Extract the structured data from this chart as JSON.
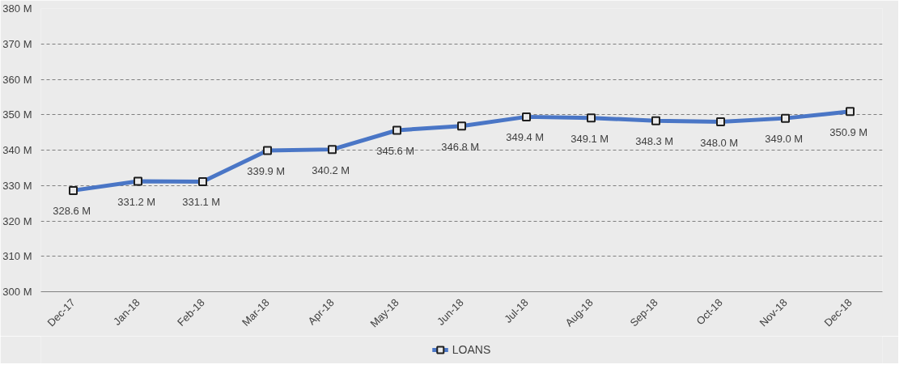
{
  "chart_data": {
    "type": "line",
    "categories": [
      "Dec-17",
      "Jan-18",
      "Feb-18",
      "Mar-18",
      "Apr-18",
      "May-18",
      "Jun-18",
      "Jul-18",
      "Aug-18",
      "Sep-18",
      "Oct-18",
      "Nov-18",
      "Dec-18"
    ],
    "series": [
      {
        "name": "LOANS",
        "color": "#4a76c6",
        "values": [
          328.6,
          331.2,
          331.1,
          339.9,
          340.2,
          345.6,
          346.8,
          349.4,
          349.1,
          348.3,
          348.0,
          349.0,
          350.9
        ],
        "value_labels": [
          "328.6  M",
          "331.2  M",
          "331.1  M",
          "339.9  M",
          "340.2  M",
          "345.6  M",
          "346.8  M",
          "349.4  M",
          "349.1  M",
          "348.3  M",
          "348.0  M",
          "349.0  M",
          "350.9  M"
        ]
      }
    ],
    "ylim": [
      300,
      380
    ],
    "yticks": [
      {
        "value": 300,
        "label": "300 M"
      },
      {
        "value": 310,
        "label": "310 M"
      },
      {
        "value": 320,
        "label": "320 M"
      },
      {
        "value": 330,
        "label": "330 M"
      },
      {
        "value": 340,
        "label": "340 M"
      },
      {
        "value": 350,
        "label": "350 M"
      },
      {
        "value": 360,
        "label": "360 M"
      },
      {
        "value": 370,
        "label": "370 M"
      },
      {
        "value": 380,
        "label": "380 M"
      }
    ],
    "grid": "y",
    "legend": "bottom",
    "marker": "square",
    "line_style": "solid"
  }
}
